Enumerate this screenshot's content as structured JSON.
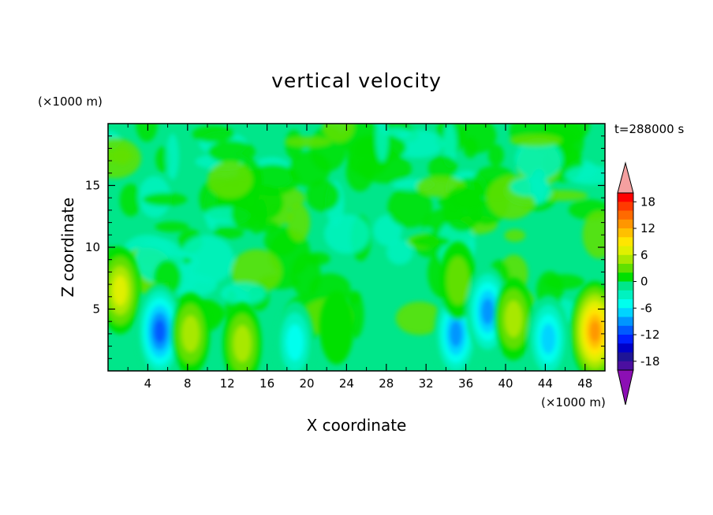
{
  "chart_data": {
    "type": "heatmap",
    "title": "vertical velocity",
    "xlabel": "X coordinate",
    "ylabel": "Z coordinate",
    "x_unit": "(×1000 m)",
    "y_unit": "(×1000 m)",
    "timestamp": "t=288000 s",
    "xlim": [
      0,
      50
    ],
    "ylim": [
      0,
      20
    ],
    "x_ticks": [
      4,
      8,
      12,
      16,
      20,
      24,
      28,
      32,
      36,
      40,
      44,
      48
    ],
    "y_ticks": [
      5,
      10,
      15
    ],
    "colorbar": {
      "range": [
        -20,
        20
      ],
      "step": 2,
      "tick_values": [
        18,
        12,
        6,
        0,
        -6,
        -12,
        -18
      ],
      "extend": "both",
      "colors": [
        "#ff0000",
        "#ff3a00",
        "#ff6a00",
        "#ff9600",
        "#ffc000",
        "#ffe600",
        "#e0f000",
        "#a8e800",
        "#60e000",
        "#00e000",
        "#00e68a",
        "#00f2c0",
        "#00ffee",
        "#00d4ff",
        "#0096ff",
        "#005aff",
        "#0020ff",
        "#0000c8",
        "#1e1496",
        "#4b0fa0"
      ],
      "upper_extend_color": "#f4a0a0",
      "lower_extend_color": "#8c0fb4"
    },
    "features": [
      {
        "x": 1.2,
        "z": 6.5,
        "value": 8
      },
      {
        "x": 5.2,
        "z": 3.2,
        "value": -12
      },
      {
        "x": 8.3,
        "z": 3.0,
        "value": 6
      },
      {
        "x": 13.5,
        "z": 2.2,
        "value": 7
      },
      {
        "x": 18.8,
        "z": 2.3,
        "value": -7
      },
      {
        "x": 23.0,
        "z": 3.5,
        "value": 3
      },
      {
        "x": 35.0,
        "z": 3.0,
        "value": -10
      },
      {
        "x": 35.2,
        "z": 7.3,
        "value": 5
      },
      {
        "x": 38.2,
        "z": 4.8,
        "value": -10
      },
      {
        "x": 40.8,
        "z": 4.2,
        "value": 6
      },
      {
        "x": 44.3,
        "z": 2.6,
        "value": -9
      },
      {
        "x": 49.0,
        "z": 3.2,
        "value": 14
      }
    ]
  }
}
